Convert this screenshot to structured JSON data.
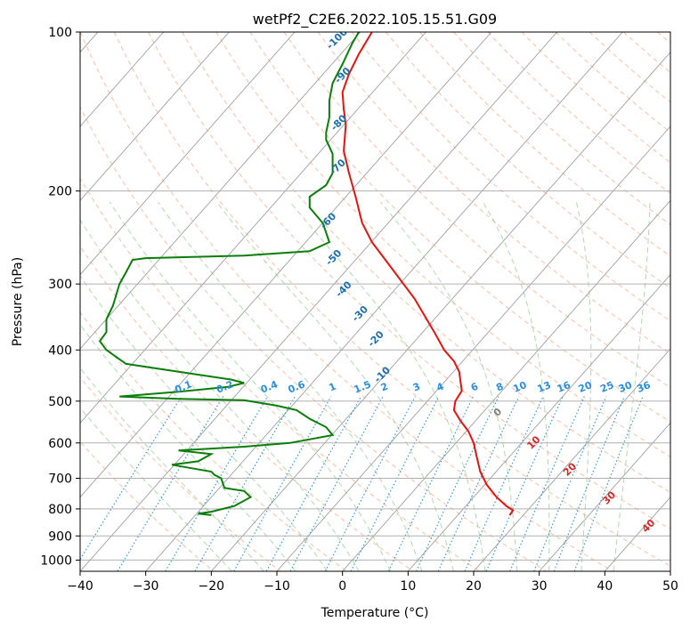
{
  "chart_data": {
    "type": "line",
    "title": "wetPf2_C2E6.2022.105.15.51.G09",
    "xlabel": "Temperature (°C)",
    "ylabel": "Pressure (hPa)",
    "xlim": [
      -40,
      50
    ],
    "ylim": [
      1050,
      100
    ],
    "y_scale": "log",
    "x_ticks": [
      -40,
      -30,
      -20,
      -10,
      0,
      10,
      20,
      30,
      40,
      50
    ],
    "y_ticks": [
      100,
      200,
      300,
      400,
      500,
      600,
      700,
      800,
      900,
      1000
    ],
    "grid": true,
    "colors": {
      "temperature": "#e8120c",
      "dewpoint": "#0a7d0a",
      "isotherm": "#a0a0a0",
      "dry_adiabat": "#f4a582",
      "moist_adiabat": "#7fbf7b",
      "mixing_ratio": "#2a8fe0",
      "height_label": "#1f6fb0",
      "lcl_label": "#d62728"
    },
    "series": [
      {
        "key": "temperature",
        "points": [
          [
            25.5,
            822
          ],
          [
            26.0,
            805
          ],
          [
            25.0,
            790
          ],
          [
            23.5,
            760
          ],
          [
            22.0,
            720
          ],
          [
            21.0,
            680
          ],
          [
            20.5,
            640
          ],
          [
            20.0,
            600
          ],
          [
            19.2,
            570
          ],
          [
            18.0,
            545
          ],
          [
            17.0,
            520
          ],
          [
            17.2,
            500
          ],
          [
            18.2,
            478
          ],
          [
            18.0,
            460
          ],
          [
            17.8,
            440
          ],
          [
            17.0,
            420
          ],
          [
            15.5,
            400
          ],
          [
            14.0,
            370
          ],
          [
            11.0,
            320
          ],
          [
            7.5,
            280
          ],
          [
            4.5,
            250
          ],
          [
            3.0,
            230
          ],
          [
            2.0,
            205
          ],
          [
            1.0,
            185
          ],
          [
            0.2,
            168
          ],
          [
            0.5,
            150
          ],
          [
            0.2,
            140
          ],
          [
            0.0,
            130
          ],
          [
            1.0,
            120
          ],
          [
            2.5,
            110
          ],
          [
            4.5,
            100
          ]
        ]
      },
      {
        "key": "dewpoint",
        "points": [
          [
            -20.0,
            822
          ],
          [
            -22.0,
            817
          ],
          [
            -20.0,
            810
          ],
          [
            -16.5,
            790
          ],
          [
            -14.0,
            760
          ],
          [
            -15.0,
            740
          ],
          [
            -18.0,
            730
          ],
          [
            -18.5,
            700
          ],
          [
            -19.5,
            690
          ],
          [
            -20.0,
            680
          ],
          [
            -23.0,
            670
          ],
          [
            -26.0,
            660
          ],
          [
            -22.0,
            650
          ],
          [
            -20.0,
            630
          ],
          [
            -25.0,
            620
          ],
          [
            -15.0,
            610
          ],
          [
            -8.0,
            600
          ],
          [
            -1.5,
            580
          ],
          [
            -2.5,
            560
          ],
          [
            -5.0,
            540
          ],
          [
            -7.0,
            520
          ],
          [
            -10.0,
            510
          ],
          [
            -15.0,
            498
          ],
          [
            -25.0,
            495
          ],
          [
            -34.0,
            490
          ],
          [
            -25.0,
            480
          ],
          [
            -17.5,
            470
          ],
          [
            -15.0,
            462
          ],
          [
            -17.0,
            455
          ],
          [
            -25.0,
            440
          ],
          [
            -33.0,
            425
          ],
          [
            -36.0,
            400
          ],
          [
            -37.0,
            385
          ],
          [
            -36.0,
            370
          ],
          [
            -36.0,
            350
          ],
          [
            -35.0,
            330
          ],
          [
            -34.0,
            300
          ],
          [
            -33.0,
            285
          ],
          [
            -32.0,
            270
          ],
          [
            -30.0,
            268
          ],
          [
            -15.0,
            265
          ],
          [
            -5.0,
            260
          ],
          [
            -2.0,
            250
          ],
          [
            -3.0,
            230
          ],
          [
            -5.0,
            215
          ],
          [
            -5.0,
            205
          ],
          [
            -2.5,
            195
          ],
          [
            -1.5,
            185
          ],
          [
            -1.5,
            170
          ],
          [
            -2.5,
            160
          ],
          [
            -2.5,
            155
          ],
          [
            -2.0,
            145
          ],
          [
            -2.0,
            135
          ],
          [
            -1.5,
            125
          ],
          [
            0.0,
            115
          ],
          [
            1.5,
            105
          ],
          [
            2.5,
            100
          ]
        ]
      }
    ],
    "height_labels": [
      {
        "text": "-100",
        "p": 104
      },
      {
        "text": "-90",
        "p": 122
      },
      {
        "text": "-80",
        "p": 150
      },
      {
        "text": "-70",
        "p": 182
      },
      {
        "text": "-60",
        "p": 230
      },
      {
        "text": "-50",
        "p": 270
      },
      {
        "text": "-40",
        "p": 310
      },
      {
        "text": "-30",
        "p": 345
      },
      {
        "text": "-20",
        "p": 385
      },
      {
        "text": "-10",
        "p": 450
      }
    ],
    "mixing_ratio_labels": [
      "0.1",
      "0.2",
      "0.4",
      "0.6",
      "1",
      "1.5",
      "2",
      "3",
      "4",
      "6",
      "8",
      "10",
      "13",
      "16",
      "20",
      "25",
      "30",
      "36"
    ],
    "lcl_labels": [
      {
        "text": "0",
        "color": "#808080"
      },
      {
        "text": "10",
        "color": "#d62728"
      },
      {
        "text": "20",
        "color": "#d62728"
      },
      {
        "text": "30",
        "color": "#d62728"
      },
      {
        "text": "40",
        "color": "#d62728"
      }
    ]
  }
}
